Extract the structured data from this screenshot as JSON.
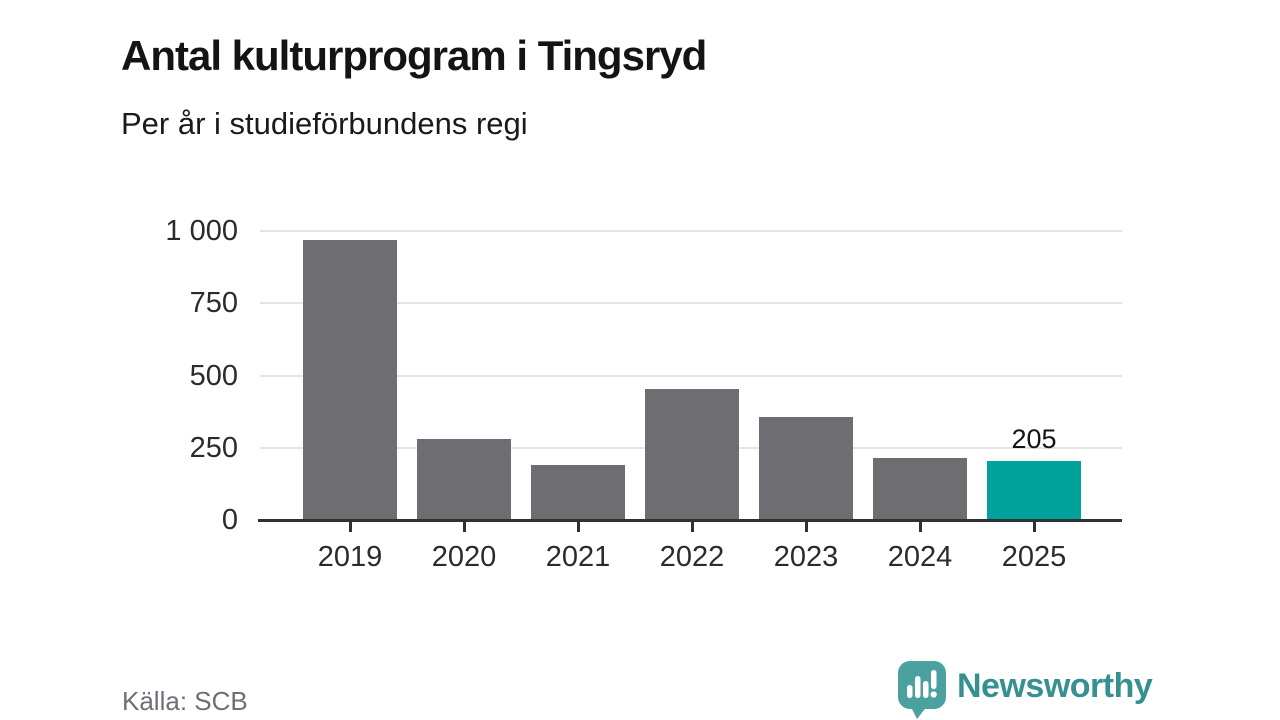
{
  "header": {
    "title": "Antal kulturprogram i Tingsryd",
    "subtitle": "Per år i studieförbundens regi"
  },
  "footer": {
    "source": "Källa: SCB",
    "brand": "Newsworthy"
  },
  "colors": {
    "bar": "#6E6D72",
    "highlight": "#00A29B",
    "axis": "#303030",
    "grid": "#E4E4E4",
    "icon_teal": "#4AA1A0",
    "brand_text": "#35918F"
  },
  "chart_data": {
    "type": "bar",
    "title": "Antal kulturprogram i Tingsryd",
    "subtitle": "Per år i studieförbundens regi",
    "categories": [
      "2019",
      "2020",
      "2021",
      "2022",
      "2023",
      "2024",
      "2025"
    ],
    "values": [
      970,
      280,
      190,
      455,
      355,
      215,
      205
    ],
    "highlight_index": 6,
    "value_labels": [
      "",
      "",
      "",
      "",
      "",
      "",
      "205"
    ],
    "xlabel": "",
    "ylabel": "",
    "ylim": [
      0,
      1000
    ],
    "yticks": [
      0,
      250,
      500,
      750,
      1000
    ],
    "ytick_labels": [
      "0",
      "250",
      "500",
      "750",
      "1 000"
    ],
    "grid": "horizontal",
    "legend": "none",
    "source": "Källa: SCB"
  }
}
